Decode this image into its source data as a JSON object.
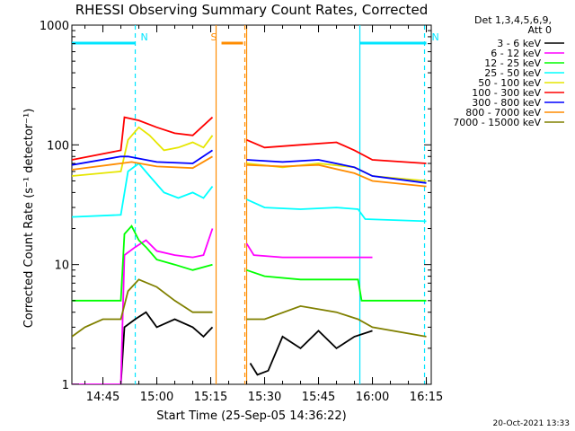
{
  "chart_data": {
    "type": "line",
    "title": "RHESSI Observing Summary Count Rates, Corrected",
    "xlabel": "Start Time (25-Sep-05 14:36:22)",
    "ylabel": "Corrected Count Rate (s⁻¹ detector⁻¹)",
    "y_scale": "log",
    "ylim": [
      1,
      1000
    ],
    "xlim": [
      "14:36:22",
      "16:16:22"
    ],
    "y_ticks": [
      "1",
      "10",
      "100",
      "1000"
    ],
    "x_ticks": [
      "14:45",
      "15:00",
      "15:15",
      "15:30",
      "15:45",
      "16:00",
      "16:15"
    ],
    "legend_header": [
      "Det 1,3,4,5,6,9,",
      "Att 0"
    ],
    "legend_position": "right",
    "footer_date": "20-Oct-2021 13:33",
    "annotations": [
      {
        "label": "N",
        "color": "#00e5ff",
        "x_start": "14:36:22",
        "x_end": "14:54:00"
      },
      {
        "label": "N",
        "color": "#00e5ff",
        "x_start": "15:56:30",
        "x_end": "16:15:00"
      },
      {
        "label": "S",
        "color": "#ff8c00",
        "x_start": "15:18:00",
        "x_end": "15:24:00"
      }
    ],
    "vlines": [
      {
        "time": "14:54:00",
        "color": "#00e5ff",
        "style": "dashed"
      },
      {
        "time": "15:56:30",
        "color": "#00e5ff",
        "style": "solid"
      },
      {
        "time": "16:14:30",
        "color": "#00e5ff",
        "style": "dashed"
      },
      {
        "time": "15:16:30",
        "color": "#ff8c00",
        "style": "solid"
      },
      {
        "time": "15:24:30",
        "color": "#ff8c00",
        "style": "dashed"
      },
      {
        "time": "15:25:00",
        "color": "#ff8c00",
        "style": "solid"
      }
    ],
    "gap": [
      "15:16:30",
      "15:25:00"
    ],
    "series": [
      {
        "name": "3 - 6 keV",
        "color": "#000000",
        "points": [
          [
            "14:50:00",
            1.0
          ],
          [
            "14:51:00",
            3.0
          ],
          [
            "14:54:00",
            3.5
          ],
          [
            "14:57:00",
            4.0
          ],
          [
            "15:00:00",
            3.0
          ],
          [
            "15:05:00",
            3.5
          ],
          [
            "15:10:00",
            3.0
          ],
          [
            "15:13:00",
            2.5
          ],
          [
            "15:15:30",
            3.0
          ],
          [
            "15:26:00",
            1.5
          ],
          [
            "15:28:00",
            1.2
          ],
          [
            "15:31:00",
            1.3
          ],
          [
            "15:35:00",
            2.5
          ],
          [
            "15:40:00",
            2.0
          ],
          [
            "15:45:00",
            2.8
          ],
          [
            "15:50:00",
            2.0
          ],
          [
            "15:55:00",
            2.5
          ],
          [
            "16:00:00",
            2.8
          ]
        ]
      },
      {
        "name": "6 - 12 keV",
        "color": "#ff00ff",
        "points": [
          [
            "14:36:22",
            1.0
          ],
          [
            "14:50:00",
            1.0
          ],
          [
            "14:51:00",
            12.0
          ],
          [
            "14:54:00",
            14.0
          ],
          [
            "14:57:00",
            16.0
          ],
          [
            "15:00:00",
            13.0
          ],
          [
            "15:05:00",
            12.0
          ],
          [
            "15:10:00",
            11.5
          ],
          [
            "15:13:00",
            12.0
          ],
          [
            "15:15:30",
            20.0
          ],
          [
            "15:25:00",
            15.0
          ],
          [
            "15:27:00",
            12.0
          ],
          [
            "15:35:00",
            11.5
          ],
          [
            "15:45:00",
            11.5
          ],
          [
            "15:55:00",
            11.5
          ],
          [
            "16:00:00",
            11.5
          ]
        ]
      },
      {
        "name": "12 - 25 keV",
        "color": "#00ff00",
        "points": [
          [
            "14:36:22",
            5.0
          ],
          [
            "14:50:00",
            5.0
          ],
          [
            "14:51:00",
            18.0
          ],
          [
            "14:53:00",
            21.0
          ],
          [
            "14:55:00",
            16.0
          ],
          [
            "14:57:00",
            14.0
          ],
          [
            "15:00:00",
            11.0
          ],
          [
            "15:05:00",
            10.0
          ],
          [
            "15:10:00",
            9.0
          ],
          [
            "15:15:30",
            10.0
          ],
          [
            "15:25:00",
            9.0
          ],
          [
            "15:30:00",
            8.0
          ],
          [
            "15:40:00",
            7.5
          ],
          [
            "15:50:00",
            7.5
          ],
          [
            "15:56:00",
            7.5
          ],
          [
            "15:57:00",
            5.0
          ],
          [
            "16:15:00",
            5.0
          ]
        ]
      },
      {
        "name": "25 - 50 keV",
        "color": "#00ffff",
        "points": [
          [
            "14:36:22",
            25.0
          ],
          [
            "14:50:00",
            26.0
          ],
          [
            "14:52:00",
            60.0
          ],
          [
            "14:55:00",
            70.0
          ],
          [
            "14:58:00",
            55.0
          ],
          [
            "15:02:00",
            40.0
          ],
          [
            "15:06:00",
            36.0
          ],
          [
            "15:10:00",
            40.0
          ],
          [
            "15:13:00",
            36.0
          ],
          [
            "15:15:30",
            45.0
          ],
          [
            "15:25:00",
            35.0
          ],
          [
            "15:30:00",
            30.0
          ],
          [
            "15:40:00",
            29.0
          ],
          [
            "15:50:00",
            30.0
          ],
          [
            "15:56:00",
            29.0
          ],
          [
            "15:58:00",
            24.0
          ],
          [
            "16:15:00",
            23.0
          ]
        ]
      },
      {
        "name": "50 - 100 keV",
        "color": "#e6e600",
        "points": [
          [
            "14:36:22",
            55.0
          ],
          [
            "14:50:00",
            60.0
          ],
          [
            "14:52:00",
            110.0
          ],
          [
            "14:55:00",
            140.0
          ],
          [
            "14:58:00",
            120.0
          ],
          [
            "15:02:00",
            90.0
          ],
          [
            "15:06:00",
            95.0
          ],
          [
            "15:10:00",
            105.0
          ],
          [
            "15:13:00",
            95.0
          ],
          [
            "15:15:30",
            120.0
          ],
          [
            "15:25:00",
            70.0
          ],
          [
            "15:35:00",
            65.0
          ],
          [
            "15:45:00",
            70.0
          ],
          [
            "15:55:00",
            65.0
          ],
          [
            "16:00:00",
            55.0
          ],
          [
            "16:15:00",
            50.0
          ]
        ]
      },
      {
        "name": "100 - 300 keV",
        "color": "#ff0000",
        "points": [
          [
            "14:36:22",
            75.0
          ],
          [
            "14:50:00",
            90.0
          ],
          [
            "14:51:00",
            170.0
          ],
          [
            "14:55:00",
            160.0
          ],
          [
            "15:00:00",
            140.0
          ],
          [
            "15:05:00",
            125.0
          ],
          [
            "15:10:00",
            120.0
          ],
          [
            "15:15:30",
            170.0
          ],
          [
            "15:25:00",
            110.0
          ],
          [
            "15:30:00",
            95.0
          ],
          [
            "15:40:00",
            100.0
          ],
          [
            "15:50:00",
            105.0
          ],
          [
            "15:55:00",
            90.0
          ],
          [
            "16:00:00",
            75.0
          ],
          [
            "16:15:00",
            70.0
          ]
        ]
      },
      {
        "name": "300 - 800 keV",
        "color": "#0000ff",
        "points": [
          [
            "14:36:22",
            68.0
          ],
          [
            "14:50:00",
            80.0
          ],
          [
            "14:52:00",
            80.0
          ],
          [
            "15:00:00",
            72.0
          ],
          [
            "15:10:00",
            70.0
          ],
          [
            "15:15:30",
            90.0
          ],
          [
            "15:25:00",
            75.0
          ],
          [
            "15:35:00",
            72.0
          ],
          [
            "15:45:00",
            75.0
          ],
          [
            "15:55:00",
            65.0
          ],
          [
            "16:00:00",
            55.0
          ],
          [
            "16:15:00",
            48.0
          ]
        ]
      },
      {
        "name": "800 - 7000 keV",
        "color": "#ff8c00",
        "points": [
          [
            "14:36:22",
            62.0
          ],
          [
            "14:50:00",
            70.0
          ],
          [
            "14:53:00",
            72.0
          ],
          [
            "15:00:00",
            66.0
          ],
          [
            "15:10:00",
            64.0
          ],
          [
            "15:15:30",
            80.0
          ],
          [
            "15:25:00",
            68.0
          ],
          [
            "15:35:00",
            66.0
          ],
          [
            "15:45:00",
            68.0
          ],
          [
            "15:55:00",
            58.0
          ],
          [
            "16:00:00",
            50.0
          ],
          [
            "16:15:00",
            45.0
          ]
        ]
      },
      {
        "name": "7000 - 15000 keV",
        "color": "#808000",
        "points": [
          [
            "14:36:22",
            2.5
          ],
          [
            "14:40:00",
            3.0
          ],
          [
            "14:45:00",
            3.5
          ],
          [
            "14:50:00",
            3.5
          ],
          [
            "14:52:00",
            6.0
          ],
          [
            "14:55:00",
            7.5
          ],
          [
            "15:00:00",
            6.5
          ],
          [
            "15:05:00",
            5.0
          ],
          [
            "15:10:00",
            4.0
          ],
          [
            "15:15:30",
            4.0
          ],
          [
            "15:25:00",
            3.5
          ],
          [
            "15:30:00",
            3.5
          ],
          [
            "15:40:00",
            4.5
          ],
          [
            "15:50:00",
            4.0
          ],
          [
            "15:56:00",
            3.5
          ],
          [
            "16:00:00",
            3.0
          ],
          [
            "16:15:00",
            2.5
          ]
        ]
      }
    ]
  }
}
